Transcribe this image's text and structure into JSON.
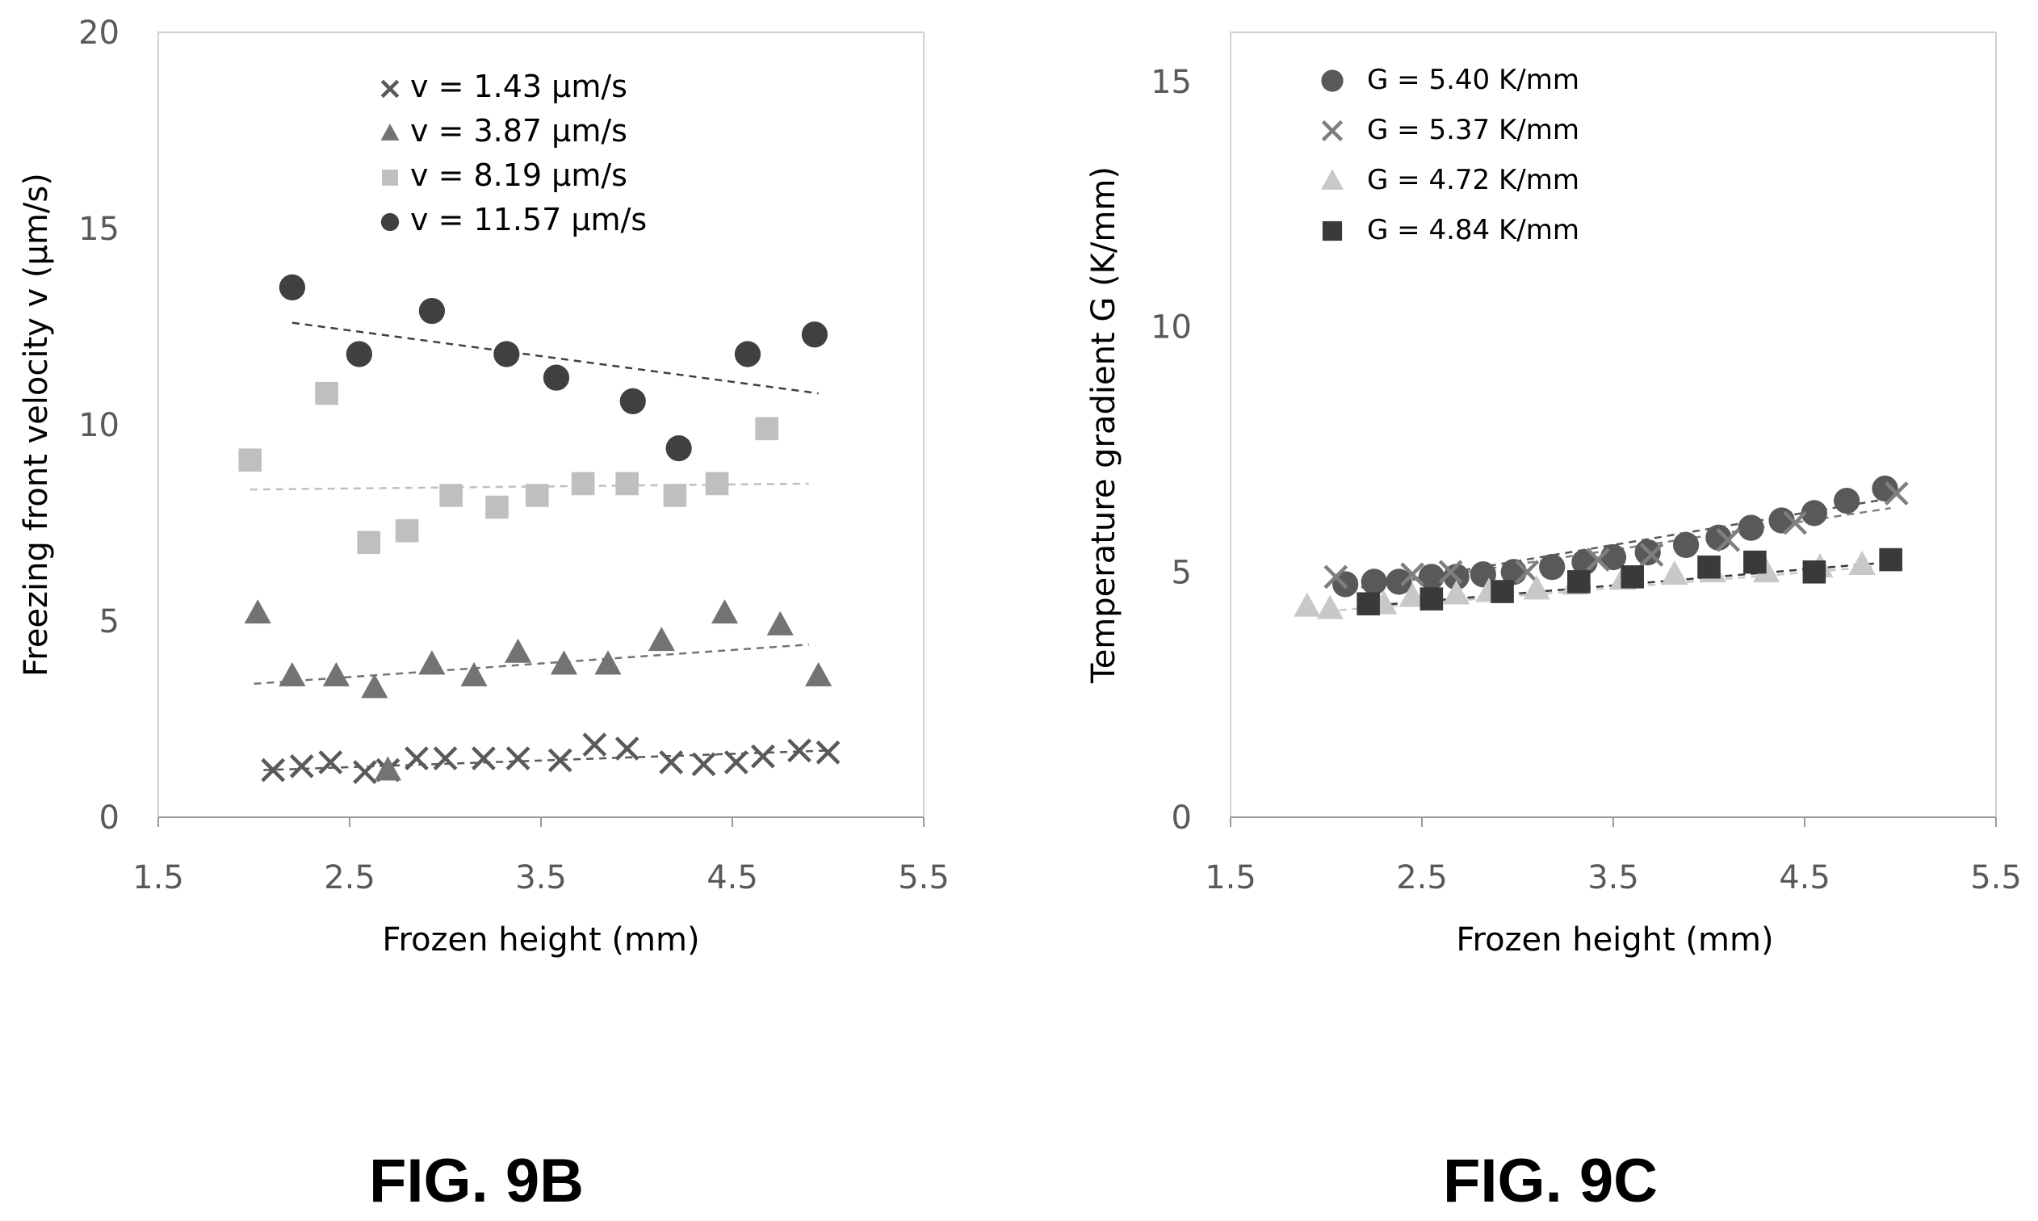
{
  "chart_data": [
    {
      "type": "scatter",
      "panel": "FIG. 9B",
      "xlabel": "Frozen height (mm)",
      "ylabel": "Freezing front velocity v (μm/s)",
      "xlim": [
        1.5,
        5.5
      ],
      "ylim": [
        0,
        20
      ],
      "xticks": [
        "1.5",
        "2.5",
        "3.5",
        "4.5",
        "5.5"
      ],
      "yticks": [
        "0",
        "5",
        "10",
        "15",
        "20"
      ],
      "legend_position": "top-right inside",
      "series": [
        {
          "name": "v = 1.43 μm/s",
          "marker": "x",
          "color": "#595959",
          "x": [
            2.1,
            2.25,
            2.4,
            2.58,
            2.7,
            2.85,
            3.0,
            3.2,
            3.38,
            3.6,
            3.78,
            3.95,
            4.18,
            4.35,
            4.52,
            4.66,
            4.85,
            5.0
          ],
          "y": [
            1.2,
            1.3,
            1.4,
            1.15,
            1.2,
            1.5,
            1.5,
            1.5,
            1.5,
            1.45,
            1.85,
            1.75,
            1.4,
            1.35,
            1.4,
            1.55,
            1.7,
            1.65
          ],
          "trend": [
            [
              2.05,
              1.2
            ],
            [
              5.0,
              1.7
            ]
          ]
        },
        {
          "name": "v = 3.87 μm/s",
          "marker": "triangle",
          "color": "#737373",
          "x": [
            2.02,
            2.2,
            2.43,
            2.63,
            2.7,
            2.93,
            3.15,
            3.38,
            3.62,
            3.85,
            4.13,
            4.46,
            4.75,
            4.95
          ],
          "y": [
            5.2,
            3.6,
            3.6,
            3.3,
            1.2,
            3.9,
            3.6,
            4.2,
            3.9,
            3.9,
            4.5,
            5.2,
            4.9,
            3.6
          ],
          "trend": [
            [
              2.0,
              3.4
            ],
            [
              4.9,
              4.4
            ]
          ]
        },
        {
          "name": "v = 8.19 μm/s",
          "marker": "square",
          "color": "#bfbfbf",
          "x": [
            1.98,
            2.38,
            2.6,
            2.8,
            3.03,
            3.27,
            3.48,
            3.72,
            3.95,
            4.2,
            4.42,
            4.68
          ],
          "y": [
            9.1,
            10.8,
            7.0,
            7.3,
            8.2,
            7.9,
            8.2,
            8.5,
            8.5,
            8.2,
            8.5,
            9.9
          ],
          "trend": [
            [
              1.98,
              8.35
            ],
            [
              4.9,
              8.5
            ]
          ]
        },
        {
          "name": "v = 11.57 μm/s",
          "marker": "circle",
          "color": "#404040",
          "x": [
            2.2,
            2.55,
            2.93,
            3.32,
            3.58,
            3.98,
            4.22,
            4.58,
            4.93
          ],
          "y": [
            13.5,
            11.8,
            12.9,
            11.8,
            11.2,
            10.6,
            9.4,
            11.8,
            12.3
          ],
          "trend": [
            [
              2.2,
              12.6
            ],
            [
              4.95,
              10.8
            ]
          ]
        }
      ]
    },
    {
      "type": "scatter",
      "panel": "FIG. 9C",
      "xlabel": "Frozen height (mm)",
      "ylabel": "Temperature gradient G (K/mm)",
      "xlim": [
        1.5,
        5.5
      ],
      "ylim": [
        0,
        16
      ],
      "xticks": [
        "1.5",
        "2.5",
        "3.5",
        "4.5",
        "5.5"
      ],
      "yticks": [
        "0",
        "5",
        "10",
        "15"
      ],
      "legend_position": "top-left inside",
      "series": [
        {
          "name": "G = 5.40 K/mm",
          "marker": "circle",
          "color": "#595959",
          "x": [
            2.1,
            2.25,
            2.38,
            2.55,
            2.68,
            2.82,
            2.98,
            3.18,
            3.35,
            3.5,
            3.68,
            3.88,
            4.05,
            4.22,
            4.38,
            4.55,
            4.72,
            4.92
          ],
          "y": [
            4.75,
            4.8,
            4.8,
            4.9,
            4.9,
            4.95,
            5.0,
            5.1,
            5.2,
            5.3,
            5.4,
            5.55,
            5.7,
            5.9,
            6.05,
            6.2,
            6.45,
            6.7
          ],
          "trend": [
            [
              2.05,
              4.6
            ],
            [
              4.95,
              6.5
            ]
          ]
        },
        {
          "name": "G = 5.37 K/mm",
          "marker": "x",
          "color": "#7f7f7f",
          "x": [
            2.05,
            2.45,
            2.65,
            3.05,
            3.42,
            3.7,
            4.1,
            4.45,
            4.98
          ],
          "y": [
            4.9,
            4.95,
            5.0,
            5.0,
            5.25,
            5.35,
            5.65,
            6.0,
            6.6
          ],
          "trend": [
            [
              2.05,
              4.6
            ],
            [
              4.95,
              6.3
            ]
          ]
        },
        {
          "name": "G = 4.72 K/mm",
          "marker": "triangle",
          "color": "#c8c8c8",
          "x": [
            1.9,
            2.02,
            2.3,
            2.45,
            2.68,
            2.85,
            3.1,
            3.3,
            3.55,
            3.82,
            4.02,
            4.3,
            4.58,
            4.8
          ],
          "y": [
            4.3,
            4.25,
            4.35,
            4.5,
            4.55,
            4.6,
            4.65,
            4.75,
            4.85,
            4.95,
            5.0,
            5.0,
            5.1,
            5.15
          ],
          "trend": [
            [
              2.0,
              4.2
            ],
            [
              4.85,
              5.1
            ]
          ]
        },
        {
          "name": "G = 4.84 K/mm",
          "marker": "square",
          "color": "#3a3a3a",
          "x": [
            2.22,
            2.55,
            2.92,
            3.32,
            3.6,
            4.0,
            4.24,
            4.55,
            4.95
          ],
          "y": [
            4.35,
            4.45,
            4.6,
            4.8,
            4.9,
            5.1,
            5.2,
            5.0,
            5.25
          ],
          "trend": [
            [
              2.2,
              4.3
            ],
            [
              4.95,
              5.2
            ]
          ]
        }
      ]
    }
  ],
  "captions": {
    "left": "FIG. 9B",
    "right": "FIG. 9C"
  }
}
